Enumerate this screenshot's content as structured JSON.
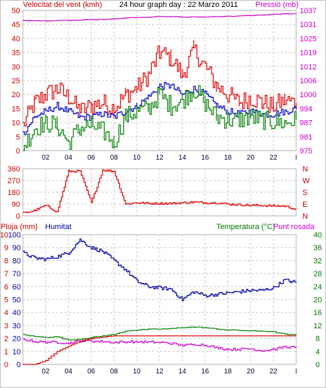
{
  "window": {
    "background": "#FFFFFF",
    "frame_color": "#C0C0C0"
  },
  "header": {
    "left_label": "Velocitat del vent (kmh)",
    "title": "24 hour graph day : 22 Marzo 2011",
    "right_label": "Pressió (mb)"
  },
  "wind_speed_panel": {
    "left_ticks": [
      "0",
      "5",
      "10",
      "15",
      "20",
      "25",
      "30",
      "35",
      "40",
      "45",
      "50"
    ],
    "right_ticks": [
      "975",
      "981",
      "987",
      "994",
      "1000",
      "1006",
      "1012",
      "1019",
      "1025",
      "1031",
      "1037"
    ],
    "left_tick_color": "#CC0000",
    "right_tick_color": "#CC00CC"
  },
  "wind_dir_panel": {
    "left_ticks": [
      "0",
      "90",
      "180",
      "270",
      "360"
    ],
    "right_ticks": [
      "N",
      "E",
      "S",
      "W",
      "N"
    ],
    "tick_color": "#CC0000"
  },
  "humidity_panel": {
    "label_left_a": "Pluja (mm)",
    "label_left_b": "Humitat",
    "label_right_a": "Temperatura (°C)",
    "label_right_b": "Punt rosada",
    "label_colors": {
      "rain": "#CC0000",
      "humidity": "#0000AA",
      "temperature": "#007700",
      "dewpoint": "#CC00CC"
    },
    "rain_ticks": [
      "0",
      "1",
      "2",
      "3",
      "4",
      "5",
      "6",
      "7",
      "8",
      "9",
      "10"
    ],
    "humidity_ticks": [
      "0",
      "10",
      "20",
      "30",
      "40",
      "50",
      "60",
      "70",
      "80",
      "90",
      "100"
    ],
    "right_ticks": [
      "0",
      "4",
      "8",
      "12",
      "16",
      "20",
      "24",
      "28",
      "32",
      "36",
      "40"
    ]
  },
  "x_axis": {
    "ticks": [
      "02",
      "04",
      "06",
      "08",
      "10",
      "12",
      "14",
      "16",
      "18",
      "20",
      "22",
      "I"
    ]
  },
  "chart_data": [
    {
      "type": "line",
      "title": "24 hour graph day : 22 Marzo 2011",
      "x": [
        0,
        1,
        2,
        3,
        4,
        5,
        6,
        7,
        8,
        9,
        10,
        11,
        12,
        13,
        14,
        15,
        16,
        17,
        18,
        19,
        20,
        21,
        22,
        23,
        24
      ],
      "ylim": [
        0,
        50
      ],
      "series": [
        {
          "name": "Velocitat del vent (kmh)",
          "color": "#DD0000",
          "axis": "left",
          "values": [
            9,
            17,
            20,
            22,
            19,
            14,
            16,
            17,
            15,
            20,
            22,
            27,
            35,
            33,
            27,
            36,
            30,
            23,
            20,
            17,
            19,
            17,
            16,
            18,
            17
          ]
        },
        {
          "name": "wind-average",
          "color": "#0000CC",
          "axis": "left",
          "values": [
            6,
            12,
            14,
            16,
            14,
            12,
            12,
            13,
            12,
            14,
            16,
            19,
            23,
            23,
            20,
            22,
            20,
            16,
            14,
            13,
            14,
            13,
            13,
            14,
            15
          ]
        },
        {
          "name": "wind-min",
          "color": "#008000",
          "axis": "left",
          "values": [
            1,
            8,
            10,
            9,
            3,
            8,
            9,
            7,
            3,
            12,
            14,
            15,
            20,
            16,
            18,
            22,
            17,
            12,
            11,
            11,
            12,
            11,
            10,
            10,
            11
          ]
        },
        {
          "name": "Pressió (mb)",
          "color": "#CC00CC",
          "axis": "right",
          "right_range": [
            975,
            1037
          ],
          "values": [
            1032.6,
            1032.4,
            1032.4,
            1032.5,
            1032.6,
            1032.7,
            1032.9,
            1033.0,
            1033.2,
            1033.7,
            1033.8,
            1034.0,
            1034.3,
            1034.2,
            1034.0,
            1034.1,
            1034.1,
            1034.2,
            1034.4,
            1034.6,
            1034.8,
            1035.0,
            1035.3,
            1035.5,
            1035.5
          ]
        }
      ]
    },
    {
      "type": "line",
      "x": [
        0,
        1,
        2,
        3,
        4,
        5,
        6,
        7,
        8,
        9,
        10,
        11,
        12,
        13,
        14,
        15,
        16,
        17,
        18,
        19,
        20,
        21,
        22,
        23,
        24
      ],
      "ylim": [
        0,
        360
      ],
      "series": [
        {
          "name": "wind-direction",
          "color": "#DD0000",
          "values": [
            20,
            40,
            80,
            30,
            340,
            340,
            100,
            350,
            340,
            90,
            100,
            95,
            95,
            95,
            100,
            105,
            100,
            100,
            90,
            85,
            80,
            80,
            75,
            75,
            50
          ]
        }
      ]
    },
    {
      "type": "line",
      "x": [
        0,
        1,
        2,
        3,
        4,
        5,
        6,
        7,
        8,
        9,
        10,
        11,
        12,
        13,
        14,
        15,
        16,
        17,
        18,
        19,
        20,
        21,
        22,
        23,
        24
      ],
      "series": [
        {
          "name": "Humitat",
          "color": "#0000AA",
          "axis": "humidity",
          "ylim": [
            0,
            100
          ],
          "values": [
            86,
            82,
            81,
            83,
            86,
            96,
            90,
            87,
            80,
            73,
            64,
            60,
            59,
            58,
            50,
            56,
            53,
            54,
            55,
            56,
            57,
            57,
            59,
            65,
            63
          ]
        },
        {
          "name": "Temperatura (°C)",
          "color": "#008000",
          "axis": "right",
          "ylim": [
            0,
            40
          ],
          "values": [
            9.2,
            8.6,
            8.4,
            8.5,
            7.5,
            7.8,
            8.3,
            8.8,
            9.2,
            10.3,
            10.6,
            10.8,
            10.9,
            11.0,
            11.4,
            11.5,
            11.3,
            10.9,
            10.6,
            10.5,
            10.3,
            10.3,
            10.0,
            9.3,
            9.0
          ]
        },
        {
          "name": "Punt rosada",
          "color": "#CC00CC",
          "axis": "right",
          "ylim": [
            0,
            40
          ],
          "values": [
            7.8,
            7.0,
            6.9,
            6.8,
            6.6,
            7.2,
            7.2,
            7.0,
            6.8,
            7.0,
            7.0,
            6.9,
            6.8,
            6.5,
            5.8,
            6.2,
            6.0,
            5.2,
            4.6,
            4.7,
            4.8,
            4.2,
            4.6,
            5.4,
            5.2
          ]
        },
        {
          "name": "Pluja (mm)",
          "color": "#DD0000",
          "axis": "rain",
          "ylim": [
            0,
            10
          ],
          "values": [
            0,
            0,
            0.3,
            1.0,
            1.4,
            1.8,
            2.0,
            2.1,
            2.2,
            2.2,
            2.2,
            2.2,
            2.2,
            2.2,
            2.2,
            2.2,
            2.2,
            2.2,
            2.2,
            2.2,
            2.2,
            2.2,
            2.2,
            2.2,
            2.2
          ]
        }
      ]
    }
  ]
}
